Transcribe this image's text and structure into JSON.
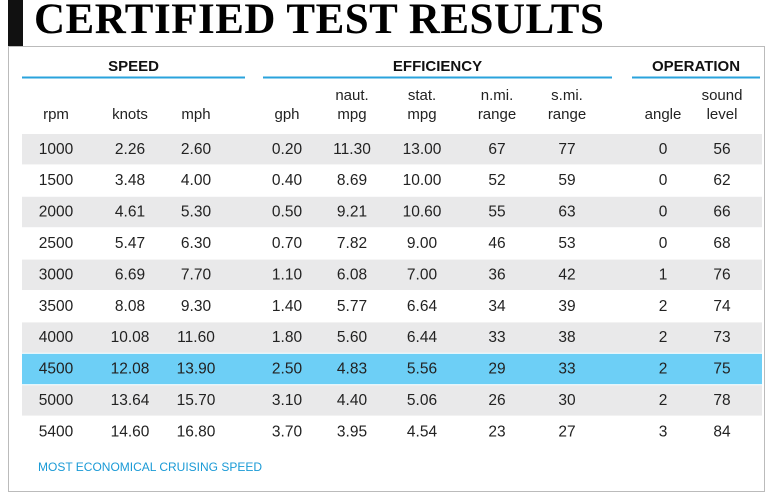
{
  "header": {
    "title": "CERTIFIED TEST RESULTS"
  },
  "table": {
    "groups": [
      {
        "label": "SPEED",
        "columns": [
          0,
          2
        ]
      },
      {
        "label": "EFFICIENCY",
        "columns": [
          3,
          7
        ]
      },
      {
        "label": "OPERATION",
        "columns": [
          8,
          9
        ]
      }
    ],
    "columns": [
      [
        "rpm"
      ],
      [
        "knots"
      ],
      [
        "mph"
      ],
      [
        "gph"
      ],
      [
        "naut.",
        "mpg"
      ],
      [
        "stat.",
        "mpg"
      ],
      [
        "n.mi.",
        "range"
      ],
      [
        "s.mi.",
        "range"
      ],
      [
        "angle"
      ],
      [
        "sound",
        "level"
      ]
    ],
    "rows": [
      [
        "1000",
        "2.26",
        "2.60",
        "0.20",
        "11.30",
        "13.00",
        "67",
        "77",
        "0",
        "56"
      ],
      [
        "1500",
        "3.48",
        "4.00",
        "0.40",
        "8.69",
        "10.00",
        "52",
        "59",
        "0",
        "62"
      ],
      [
        "2000",
        "4.61",
        "5.30",
        "0.50",
        "9.21",
        "10.60",
        "55",
        "63",
        "0",
        "66"
      ],
      [
        "2500",
        "5.47",
        "6.30",
        "0.70",
        "7.82",
        "9.00",
        "46",
        "53",
        "0",
        "68"
      ],
      [
        "3000",
        "6.69",
        "7.70",
        "1.10",
        "6.08",
        "7.00",
        "36",
        "42",
        "1",
        "76"
      ],
      [
        "3500",
        "8.08",
        "9.30",
        "1.40",
        "5.77",
        "6.64",
        "34",
        "39",
        "2",
        "74"
      ],
      [
        "4000",
        "10.08",
        "11.60",
        "1.80",
        "5.60",
        "6.44",
        "33",
        "38",
        "2",
        "73"
      ],
      [
        "4500",
        "12.08",
        "13.90",
        "2.50",
        "4.83",
        "5.56",
        "29",
        "33",
        "2",
        "75"
      ],
      [
        "5000",
        "13.64",
        "15.70",
        "3.10",
        "4.40",
        "5.06",
        "26",
        "30",
        "2",
        "78"
      ],
      [
        "5400",
        "14.60",
        "16.80",
        "3.70",
        "3.95",
        "4.54",
        "23",
        "27",
        "3",
        "84"
      ]
    ],
    "highlight_row": 7,
    "highlight_color": "#6dcff6"
  },
  "footnote": "MOST ECONOMICAL CRUISING SPEED"
}
